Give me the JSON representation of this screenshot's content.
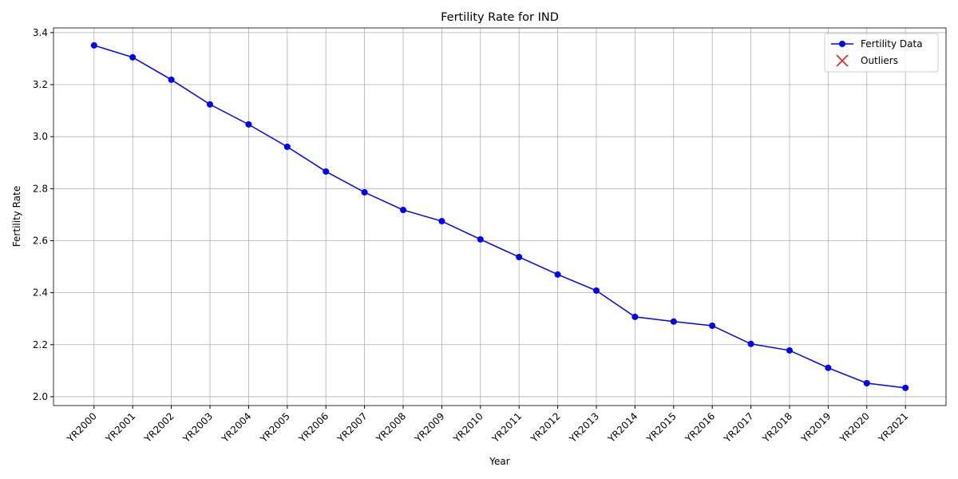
{
  "chart_data": {
    "type": "line",
    "title": "Fertility Rate for IND",
    "xlabel": "Year",
    "ylabel": "Fertility Rate",
    "categories": [
      "YR2000",
      "YR2001",
      "YR2002",
      "YR2003",
      "YR2004",
      "YR2005",
      "YR2006",
      "YR2007",
      "YR2008",
      "YR2009",
      "YR2010",
      "YR2011",
      "YR2012",
      "YR2013",
      "YR2014",
      "YR2015",
      "YR2016",
      "YR2017",
      "YR2018",
      "YR2019",
      "YR2020",
      "YR2021"
    ],
    "series": [
      {
        "name": "Fertility Data",
        "color": "#0000ff",
        "marker": "o",
        "values": [
          3.351,
          3.305,
          3.219,
          3.124,
          3.047,
          2.961,
          2.866,
          2.786,
          2.718,
          2.675,
          2.605,
          2.537,
          2.47,
          2.408,
          2.307,
          2.289,
          2.273,
          2.203,
          2.178,
          2.111,
          2.052,
          2.034
        ]
      },
      {
        "name": "Outliers",
        "color": "#ff0000",
        "marker": "x",
        "values": [
          null,
          null,
          null,
          null,
          null,
          null,
          null,
          null,
          null,
          null,
          null,
          null,
          null,
          null,
          null,
          null,
          null,
          null,
          null,
          null,
          null,
          null
        ]
      }
    ],
    "ylim": [
      1.966,
      3.418
    ],
    "yticks": [
      {
        "value": 2,
        "label": "2.0"
      },
      2.2,
      2.4,
      2.6,
      2.8,
      {
        "value": 3,
        "label": "3.0"
      },
      3.2,
      3.4
    ],
    "grid": true,
    "legend": "upper right"
  }
}
